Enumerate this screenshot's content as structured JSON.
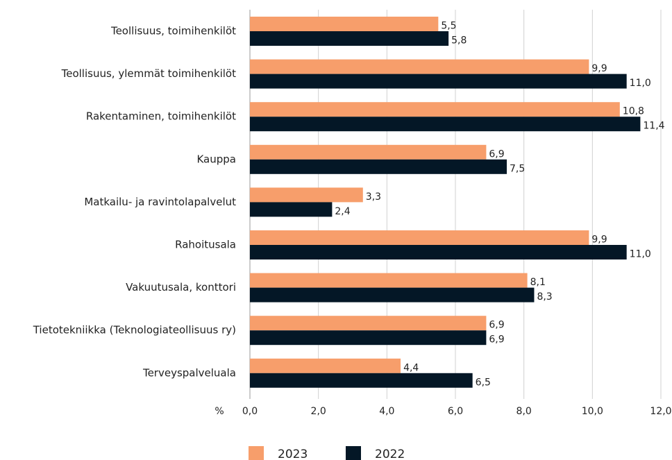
{
  "chart_data": {
    "type": "barh",
    "categories": [
      "Teollisuus, toimihenkilöt",
      "Teollisuus, ylemmät toimihenkilöt",
      "Rakentaminen, toimihenkilöt",
      "Kauppa",
      "Matkailu- ja ravintolapalvelut",
      "Rahoitusala",
      "Vakuutusala, konttori",
      "Tietotekniikka (Teknologiateollisuus ry)",
      "Terveyspalveluala"
    ],
    "series": [
      {
        "name": "2023",
        "color": "#f79e6b",
        "values": [
          5.5,
          9.9,
          10.8,
          6.9,
          3.3,
          9.9,
          8.1,
          6.9,
          4.4
        ],
        "value_labels": [
          "5,5",
          "9,9",
          "10,8",
          "6,9",
          "3,3",
          "9,9",
          "8,1",
          "6,9",
          "4,4"
        ]
      },
      {
        "name": "2022",
        "color": "#041726",
        "values": [
          5.8,
          11.0,
          11.4,
          7.5,
          2.4,
          11.0,
          8.3,
          6.9,
          6.5
        ],
        "value_labels": [
          "5,8",
          "11,0",
          "11,4",
          "7,5",
          "2,4",
          "11,0",
          "8,3",
          "6,9",
          "6,5"
        ]
      }
    ],
    "xlabel": "%",
    "xlim": [
      0,
      12
    ],
    "xticks": [
      {
        "value": 0,
        "label": "0,0"
      },
      {
        "value": 2,
        "label": "2,0"
      },
      {
        "value": 4,
        "label": "4,0"
      },
      {
        "value": 6,
        "label": "6,0"
      },
      {
        "value": 8,
        "label": "8,0"
      },
      {
        "value": 10,
        "label": "10,0"
      },
      {
        "value": 12,
        "label": "12,0"
      }
    ],
    "grid": true,
    "legend": "bottom"
  }
}
